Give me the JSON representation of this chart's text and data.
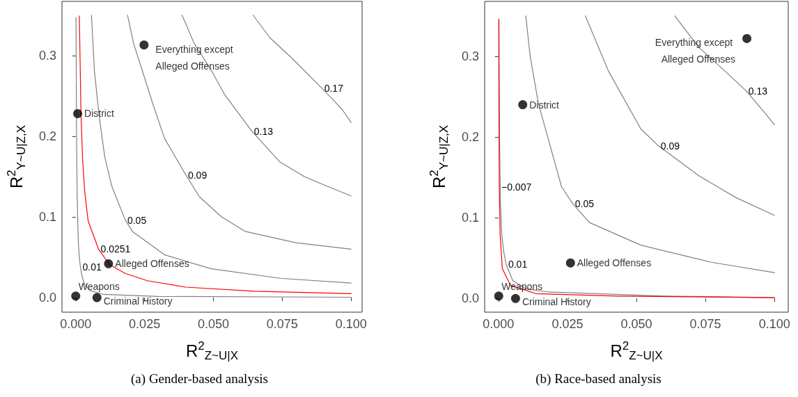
{
  "chart_data": [
    {
      "type": "line",
      "title": "(a) Gender-based analysis",
      "xlabel": "R$^{2}$$_{Z~U|X}$",
      "ylabel": "R$^{2}$$_{Y~U|Z,X}$",
      "xlim": [
        -0.005,
        0.104
      ],
      "ylim": [
        -0.018,
        0.367
      ],
      "xticks": [
        {
          "value": 0,
          "label": "0.000"
        },
        {
          "value": 0.025,
          "label": "0.025"
        },
        {
          "value": 0.05,
          "label": "0.050"
        },
        {
          "value": 0.075,
          "label": "0.075"
        },
        {
          "value": 0.1,
          "label": "0.100"
        }
      ],
      "yticks": [
        {
          "value": 0,
          "label": "0.0"
        },
        {
          "value": 0.1,
          "label": "0.1"
        },
        {
          "value": 0.2,
          "label": "0.2"
        },
        {
          "value": 0.3,
          "label": "0.3"
        }
      ],
      "grid": false,
      "marker": "circle",
      "line_style": "solid",
      "series": [
        {
          "name": "0.01",
          "marker": "none",
          "color": "#808080",
          "x": [
            0.0001,
            0.0003,
            0.0005,
            0.0008,
            0.001,
            0.0013,
            0.0017,
            0.0022,
            0.003,
            0.005,
            0.01,
            0.03,
            0.1
          ],
          "values": [
            0.347,
            0.2,
            0.13,
            0.085,
            0.065,
            0.05,
            0.038,
            0.028,
            0.018,
            0.009,
            0.004,
            0.0015,
            0.0005
          ]
        },
        {
          "name": "0.0251",
          "marker": "none",
          "color": "#ff0000",
          "x": [
            0.0013,
            0.0016,
            0.0019,
            0.0025,
            0.0033,
            0.0045,
            0.0083,
            0.0122,
            0.018,
            0.026,
            0.04,
            0.065,
            0.1
          ],
          "values": [
            0.349,
            0.29,
            0.228,
            0.17,
            0.13,
            0.095,
            0.06,
            0.041,
            0.03,
            0.021,
            0.013,
            0.008,
            0.005
          ]
        },
        {
          "name": "0.05",
          "marker": "none",
          "color": "#808080",
          "x": [
            0.0057,
            0.0068,
            0.0085,
            0.0105,
            0.013,
            0.018,
            0.0206,
            0.0323,
            0.049,
            0.0742,
            0.1
          ],
          "values": [
            0.35,
            0.28,
            0.225,
            0.175,
            0.139,
            0.096,
            0.082,
            0.053,
            0.036,
            0.024,
            0.018
          ]
        },
        {
          "name": "0.09",
          "marker": "none",
          "color": "#808080",
          "x": [
            0.0188,
            0.021,
            0.024,
            0.028,
            0.0323,
            0.04,
            0.0449,
            0.053,
            0.0616,
            0.08,
            0.1
          ],
          "values": [
            0.35,
            0.315,
            0.283,
            0.24,
            0.197,
            0.152,
            0.125,
            0.1,
            0.082,
            0.068,
            0.06
          ]
        },
        {
          "name": "0.13",
          "marker": "none",
          "color": "#808080",
          "x": [
            0.0386,
            0.043,
            0.049,
            0.054,
            0.064,
            0.0742,
            0.083,
            0.092,
            0.1
          ],
          "values": [
            0.35,
            0.315,
            0.283,
            0.252,
            0.206,
            0.168,
            0.15,
            0.137,
            0.126
          ]
        },
        {
          "name": "0.17",
          "marker": "none",
          "color": "#808080",
          "x": [
            0.0644,
            0.0705,
            0.0784,
            0.0895,
            0.0935,
            0.097,
            0.1
          ],
          "values": [
            0.35,
            0.322,
            0.297,
            0.259,
            0.245,
            0.232,
            0.217
          ]
        },
        {
          "type": "scatter",
          "color": "#000000",
          "x": [
            0.0248,
            0.0007,
            0.0119,
            0,
            0.0077
          ],
          "values": [
            0.313,
            0.228,
            0.042,
            0.002,
            0
          ],
          "value_labels": [
            "Everything except Alleged Offenses",
            "District",
            "Alleged Offenses",
            "Weapons",
            "Criminal History"
          ]
        }
      ]
    },
    {
      "type": "line",
      "title": "(b) Race-based analysis",
      "xlabel": "R$^{2}$$_{Z~U|X}$",
      "ylabel": "R$^{2}$$_{Y~U|Z,X}$",
      "xlim": [
        -0.005,
        0.105
      ],
      "ylim": [
        -0.017,
        0.368
      ],
      "xticks": [
        {
          "value": 0,
          "label": "0.000"
        },
        {
          "value": 0.025,
          "label": "0.025"
        },
        {
          "value": 0.05,
          "label": "0.050"
        },
        {
          "value": 0.075,
          "label": "0.075"
        },
        {
          "value": 0.1,
          "label": "0.100"
        }
      ],
      "yticks": [
        {
          "value": 0,
          "label": "0.0"
        },
        {
          "value": 0.1,
          "label": "0.1"
        },
        {
          "value": 0.2,
          "label": "0.2"
        },
        {
          "value": 0.3,
          "label": "0.3"
        }
      ],
      "grid": false,
      "marker": "circle",
      "line_style": "solid",
      "series": [
        {
          "name": "0.01",
          "marker": "none",
          "color": "#808080",
          "x": [
            0.0002,
            0.0004,
            0.0007,
            0.0012,
            0.0018,
            0.0028,
            0.0052,
            0.01,
            0.0179,
            0.06,
            0.1
          ],
          "values": [
            0.346,
            0.2,
            0.12,
            0.08,
            0.06,
            0.042,
            0.022,
            0.012,
            0.008,
            0.003,
            0.001
          ]
        },
        {
          "name": "−0.007",
          "marker": "none",
          "color": "#ff0000",
          "x": [
            0.0001,
            0.00012,
            0.00015,
            0.0002,
            0.00025,
            0.0003,
            0.0006,
            0.0014,
            0.0044,
            0.0136,
            0.043,
            0.1
          ],
          "values": [
            0.346,
            0.31,
            0.27,
            0.22,
            0.17,
            0.138,
            0.08,
            0.037,
            0.016,
            0.006,
            0.003,
            0.001
          ]
        },
        {
          "name": "0.05",
          "marker": "none",
          "color": "#808080",
          "x": [
            0.0099,
            0.0115,
            0.0145,
            0.0229,
            0.027,
            0.033,
            0.0516,
            0.0768,
            0.1
          ],
          "values": [
            0.35,
            0.3,
            0.241,
            0.138,
            0.117,
            0.094,
            0.066,
            0.045,
            0.032
          ]
        },
        {
          "name": "0.09",
          "marker": "none",
          "color": "#808080",
          "x": [
            0.0315,
            0.0398,
            0.0516,
            0.058,
            0.0726,
            0.086,
            0.1
          ],
          "values": [
            0.35,
            0.282,
            0.21,
            0.189,
            0.152,
            0.125,
            0.103
          ]
        },
        {
          "name": "0.13",
          "marker": "none",
          "color": "#808080",
          "x": [
            0.0639,
            0.0726,
            0.081,
            0.0898,
            0.094,
            0.097,
            0.1
          ],
          "values": [
            0.35,
            0.311,
            0.285,
            0.257,
            0.24,
            0.228,
            0.215
          ]
        },
        {
          "type": "scatter",
          "color": "#000000",
          "x": [
            0.09,
            0.0088,
            0.0261,
            0.0001,
            0.0062
          ],
          "values": [
            0.322,
            0.24,
            0.044,
            0.003,
            0
          ],
          "value_labels": [
            "Everything except Alleged Offenses",
            "District",
            "Alleged Offenses",
            "Weapons",
            "Criminal History"
          ]
        }
      ]
    }
  ]
}
